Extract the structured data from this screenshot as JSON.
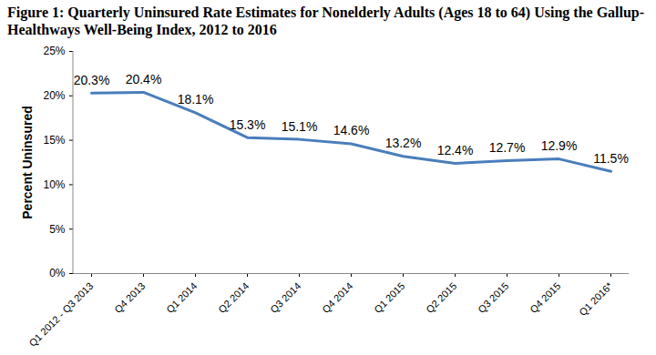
{
  "chart_data": {
    "type": "line",
    "title": "Figure 1: Quarterly Uninsured Rate Estimates for Nonelderly Adults (Ages 18 to 64) Using the Gallup-Healthways Well-Being Index, 2012 to 2016",
    "y_label": "Percent Uninsured",
    "categories": [
      "Q1 2012 - Q3 2013",
      "Q4 2013",
      "Q1 2014",
      "Q2 2014",
      "Q3 2014",
      "Q4 2014",
      "Q1 2015",
      "Q2 2015",
      "Q3 2015",
      "Q4 2015",
      "Q1 2016*"
    ],
    "values": [
      20.3,
      20.4,
      18.1,
      15.3,
      15.1,
      14.6,
      13.2,
      12.4,
      12.7,
      12.9,
      11.5
    ],
    "value_labels": [
      "20.3%",
      "20.4%",
      "18.1%",
      "15.3%",
      "15.1%",
      "14.6%",
      "13.2%",
      "12.4%",
      "12.7%",
      "12.9%",
      "11.5%"
    ],
    "color": "#4a7ebb",
    "ylim": [
      0,
      25
    ],
    "yticks": [
      {
        "value": 0,
        "label": "0%"
      },
      {
        "value": 5,
        "label": "5%"
      },
      {
        "value": 10,
        "label": "10%"
      },
      {
        "value": 15,
        "label": "15%"
      },
      {
        "value": 20,
        "label": "20%"
      },
      {
        "value": 25,
        "label": "25%"
      }
    ],
    "grid": false,
    "data_labels": true
  }
}
